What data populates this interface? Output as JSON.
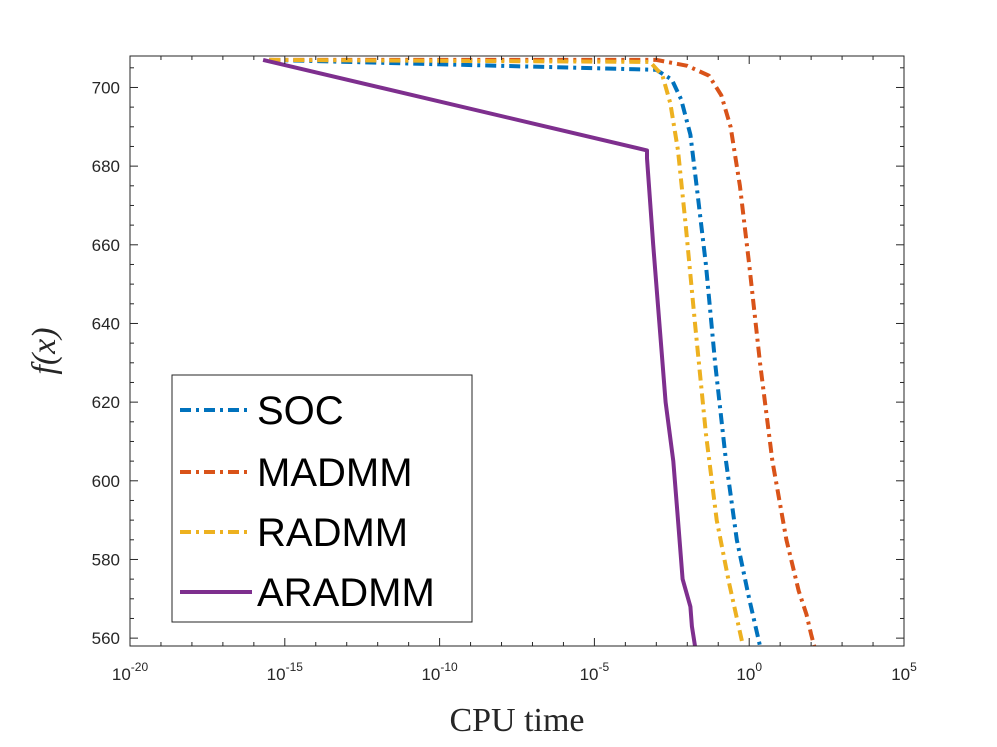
{
  "chart_data": {
    "type": "line",
    "title": "",
    "xlabel": "CPU time",
    "ylabel": "f(x)",
    "xscale": "log",
    "xlim_exponent": [
      -20,
      5
    ],
    "ylim": [
      558,
      708
    ],
    "x_ticks": [
      {
        "base": "10",
        "exp": "-20",
        "value": -20
      },
      {
        "base": "10",
        "exp": "-15",
        "value": -15
      },
      {
        "base": "10",
        "exp": "-10",
        "value": -10
      },
      {
        "base": "10",
        "exp": "-5",
        "value": -5
      },
      {
        "base": "10",
        "exp": "0",
        "value": 0
      },
      {
        "base": "10",
        "exp": "5",
        "value": 5
      }
    ],
    "y_ticks": [
      "560",
      "580",
      "600",
      "620",
      "640",
      "660",
      "680",
      "700"
    ],
    "legend_position": "bottom-left",
    "series": [
      {
        "name": "SOC",
        "color": "#0072BD",
        "dash": "dash-dot",
        "points": [
          {
            "x": -15.5,
            "y": 707
          },
          {
            "x": -3.0,
            "y": 704.5
          },
          {
            "x": -2.5,
            "y": 702
          },
          {
            "x": -2.2,
            "y": 697
          },
          {
            "x": -1.9,
            "y": 688
          },
          {
            "x": -1.7,
            "y": 675
          },
          {
            "x": -1.4,
            "y": 655
          },
          {
            "x": -1.1,
            "y": 630
          },
          {
            "x": -0.75,
            "y": 605
          },
          {
            "x": -0.4,
            "y": 585
          },
          {
            "x": 0.0,
            "y": 570
          },
          {
            "x": 0.35,
            "y": 558
          }
        ]
      },
      {
        "name": "MADMM",
        "color": "#D95319",
        "dash": "dash-dot",
        "points": [
          {
            "x": -15.5,
            "y": 707
          },
          {
            "x": -3.0,
            "y": 707
          },
          {
            "x": -2.0,
            "y": 705.5
          },
          {
            "x": -1.3,
            "y": 703
          },
          {
            "x": -0.9,
            "y": 698
          },
          {
            "x": -0.6,
            "y": 690
          },
          {
            "x": -0.3,
            "y": 675
          },
          {
            "x": 0.0,
            "y": 655
          },
          {
            "x": 0.35,
            "y": 630
          },
          {
            "x": 0.75,
            "y": 605
          },
          {
            "x": 1.2,
            "y": 585
          },
          {
            "x": 1.6,
            "y": 572
          },
          {
            "x": 1.85,
            "y": 566
          },
          {
            "x": 2.0,
            "y": 561
          },
          {
            "x": 2.1,
            "y": 558
          }
        ]
      },
      {
        "name": "RADMM",
        "color": "#EDB120",
        "dash": "dash-dot",
        "points": [
          {
            "x": -15.5,
            "y": 707
          },
          {
            "x": -3.2,
            "y": 706.5
          },
          {
            "x": -2.8,
            "y": 703
          },
          {
            "x": -2.55,
            "y": 696
          },
          {
            "x": -2.3,
            "y": 684
          },
          {
            "x": -2.05,
            "y": 665
          },
          {
            "x": -1.75,
            "y": 640
          },
          {
            "x": -1.4,
            "y": 612
          },
          {
            "x": -1.05,
            "y": 590
          },
          {
            "x": -0.65,
            "y": 574
          },
          {
            "x": -0.2,
            "y": 558
          }
        ]
      },
      {
        "name": "ARADMM",
        "color": "#7E2F8E",
        "dash": "solid",
        "points": [
          {
            "x": -15.7,
            "y": 707
          },
          {
            "x": -3.3,
            "y": 684
          },
          {
            "x": -3.3,
            "y": 682
          },
          {
            "x": -3.1,
            "y": 660
          },
          {
            "x": -2.9,
            "y": 640
          },
          {
            "x": -2.7,
            "y": 620
          },
          {
            "x": -2.45,
            "y": 605
          },
          {
            "x": -2.3,
            "y": 590
          },
          {
            "x": -2.15,
            "y": 575
          },
          {
            "x": -1.9,
            "y": 568
          },
          {
            "x": -1.85,
            "y": 563
          },
          {
            "x": -1.75,
            "y": 558
          }
        ]
      }
    ]
  }
}
